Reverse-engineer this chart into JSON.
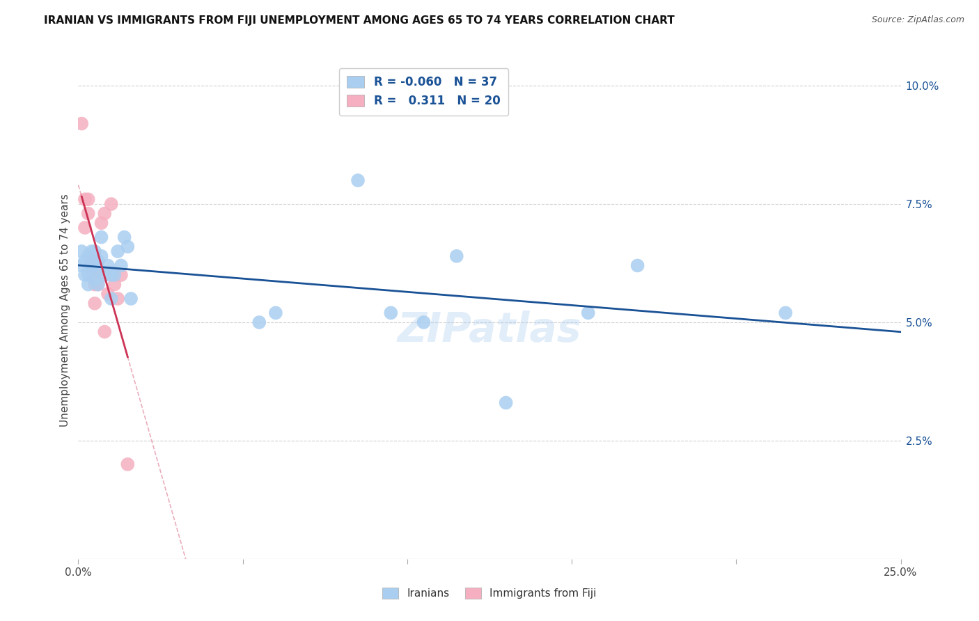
{
  "title": "IRANIAN VS IMMIGRANTS FROM FIJI UNEMPLOYMENT AMONG AGES 65 TO 74 YEARS CORRELATION CHART",
  "source": "Source: ZipAtlas.com",
  "ylabel": "Unemployment Among Ages 65 to 74 years",
  "xlim": [
    0.0,
    0.25
  ],
  "ylim": [
    0.0,
    0.105
  ],
  "xticks": [
    0.0,
    0.05,
    0.1,
    0.15,
    0.2,
    0.25
  ],
  "xticklabels": [
    "0.0%",
    "",
    "",
    "",
    "",
    "25.0%"
  ],
  "yticks_right": [
    0.025,
    0.05,
    0.075,
    0.1
  ],
  "yticklabels_right": [
    "2.5%",
    "5.0%",
    "7.5%",
    "10.0%"
  ],
  "R_iranians": -0.06,
  "N_iranians": 37,
  "R_fiji": 0.311,
  "N_fiji": 20,
  "color_iranians": "#aacef0",
  "color_fiji": "#f5afc0",
  "line_color_iranians": "#1a5296",
  "line_color_fiji": "#cc3355",
  "legend_label_iranians": "Iranians",
  "legend_label_fiji": "Immigrants from Fiji",
  "iranians_x": [
    0.001,
    0.001,
    0.002,
    0.002,
    0.003,
    0.003,
    0.003,
    0.004,
    0.004,
    0.005,
    0.005,
    0.005,
    0.006,
    0.006,
    0.006,
    0.007,
    0.007,
    0.008,
    0.009,
    0.01,
    0.01,
    0.011,
    0.012,
    0.013,
    0.014,
    0.015,
    0.016,
    0.055,
    0.06,
    0.085,
    0.095,
    0.105,
    0.115,
    0.13,
    0.155,
    0.17,
    0.215
  ],
  "iranians_y": [
    0.062,
    0.065,
    0.06,
    0.063,
    0.058,
    0.06,
    0.064,
    0.062,
    0.065,
    0.059,
    0.062,
    0.065,
    0.058,
    0.061,
    0.063,
    0.064,
    0.068,
    0.06,
    0.062,
    0.06,
    0.055,
    0.06,
    0.065,
    0.062,
    0.068,
    0.066,
    0.055,
    0.05,
    0.052,
    0.08,
    0.052,
    0.05,
    0.064,
    0.033,
    0.052,
    0.062,
    0.052
  ],
  "fiji_x": [
    0.001,
    0.002,
    0.002,
    0.003,
    0.003,
    0.004,
    0.004,
    0.005,
    0.005,
    0.006,
    0.006,
    0.007,
    0.008,
    0.008,
    0.009,
    0.01,
    0.011,
    0.012,
    0.013,
    0.015
  ],
  "fiji_y": [
    0.092,
    0.076,
    0.07,
    0.073,
    0.076,
    0.06,
    0.063,
    0.054,
    0.058,
    0.058,
    0.06,
    0.071,
    0.073,
    0.048,
    0.056,
    0.075,
    0.058,
    0.055,
    0.06,
    0.02
  ],
  "watermark": "ZIPatlas",
  "background_color": "#ffffff",
  "grid_color": "#d0d0d0"
}
